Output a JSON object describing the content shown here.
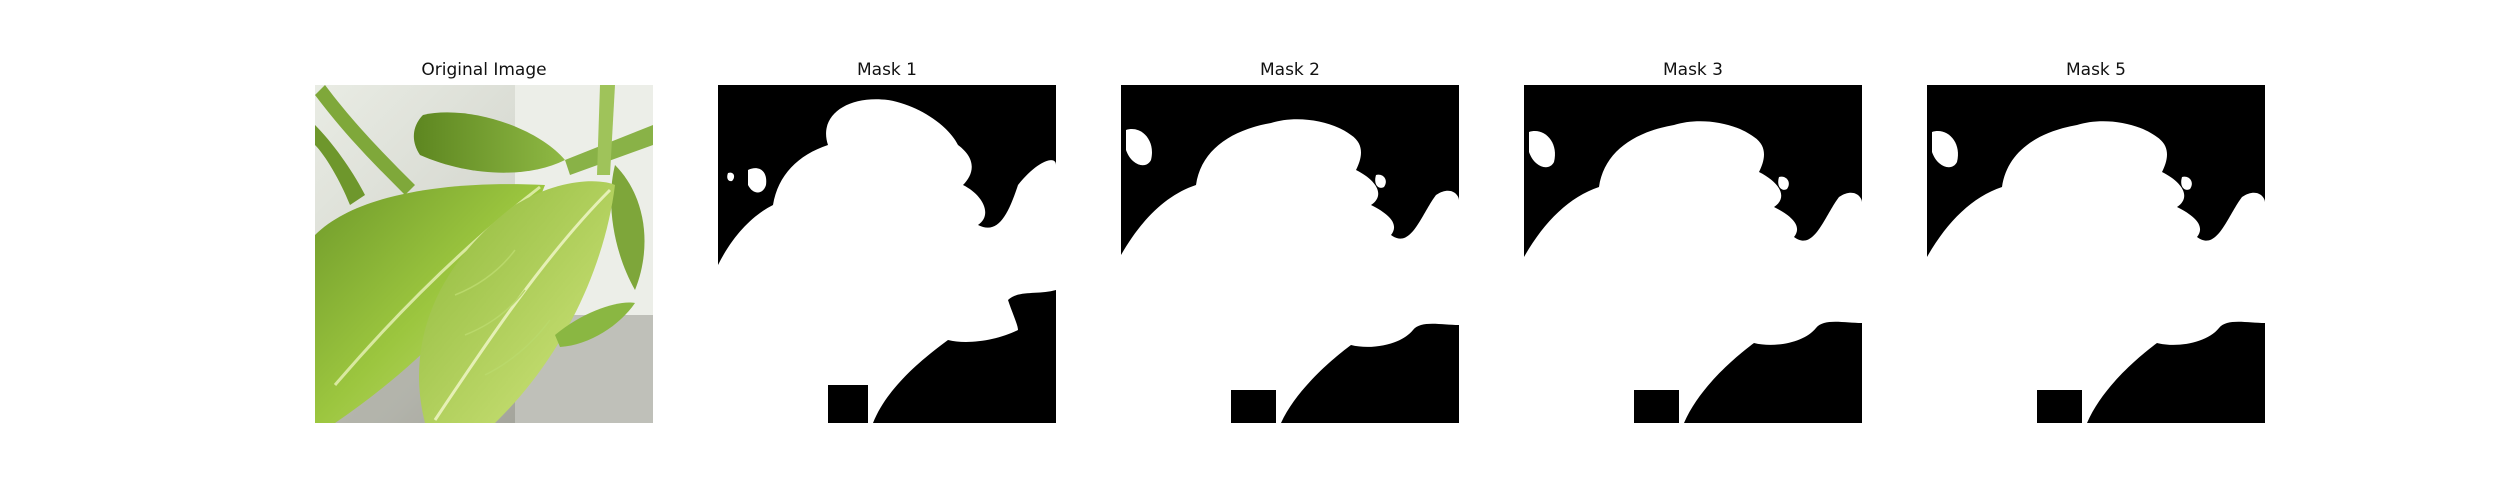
{
  "panels": [
    {
      "title": "Original Image",
      "kind": "photo",
      "subject": "green-leaves-photo"
    },
    {
      "title": "Mask 1",
      "kind": "mask",
      "variant": 1
    },
    {
      "title": "Mask 2",
      "kind": "mask",
      "variant": 2
    },
    {
      "title": "Mask 3",
      "kind": "mask",
      "variant": 3
    },
    {
      "title": "Mask 5",
      "kind": "mask",
      "variant": 5
    }
  ],
  "colors": {
    "mask_background": "#000000",
    "mask_foreground": "#ffffff",
    "leaf_dark": "#6f9a2a",
    "leaf_mid": "#9cc63f",
    "leaf_light": "#c9e07a",
    "photo_background": "#cfd1c9"
  }
}
